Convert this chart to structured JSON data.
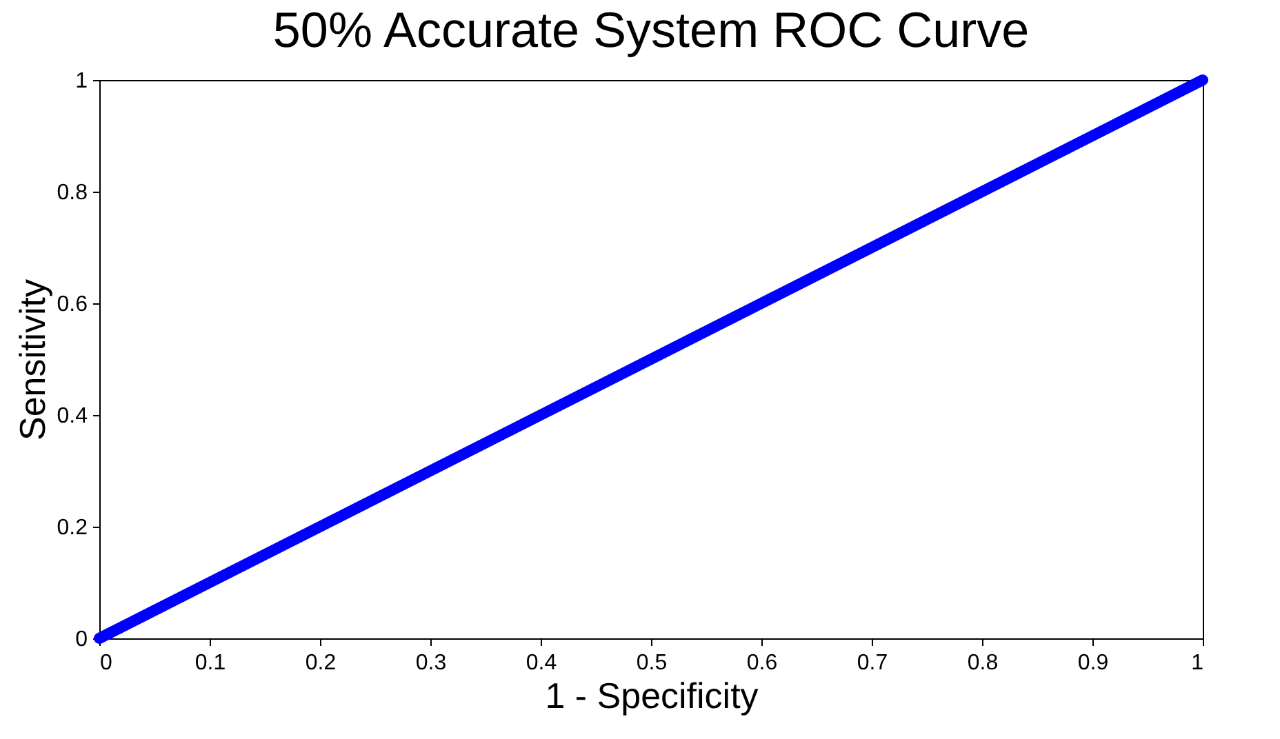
{
  "chart_data": {
    "type": "line",
    "title": "50% Accurate System ROC Curve",
    "xlabel": "1 - Specificity",
    "ylabel": "Sensitivity",
    "x": [
      0,
      1
    ],
    "series": [
      {
        "color": "#0000ff",
        "values": [
          0,
          1
        ]
      }
    ],
    "xlim": [
      0,
      1
    ],
    "ylim": [
      0,
      1
    ],
    "xticks": [
      0,
      0.1,
      0.2,
      0.3,
      0.4,
      0.5,
      0.6,
      0.7,
      0.8,
      0.9,
      1
    ],
    "yticks": [
      0,
      0.2,
      0.4,
      0.6,
      0.8,
      1
    ]
  }
}
